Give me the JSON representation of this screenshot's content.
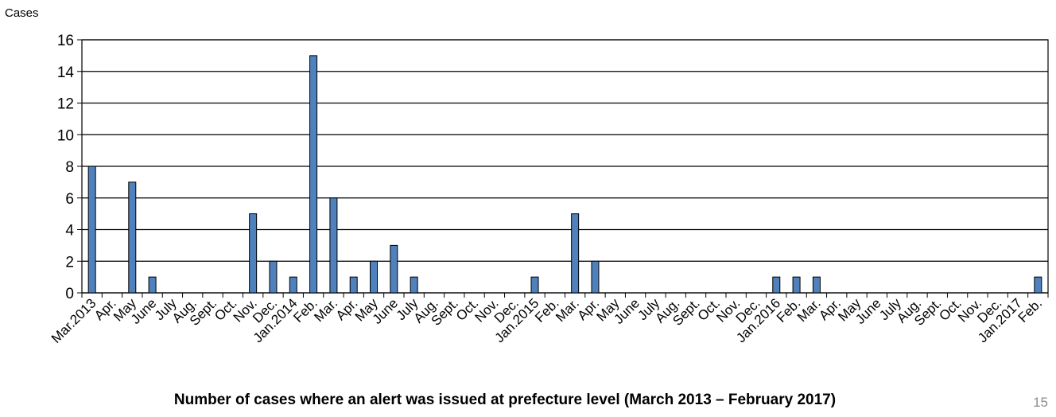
{
  "chart_data": {
    "type": "bar",
    "title": "Number of  cases where an alert was issued at prefecture level (March 2013 – February 2017)",
    "xlabel": "",
    "ylabel": "Cases",
    "ylim": [
      0,
      16
    ],
    "yticks": [
      0,
      2,
      4,
      6,
      8,
      10,
      12,
      14,
      16
    ],
    "grid": true,
    "legend": "none",
    "bar_color": "#4f81bd",
    "bar_stroke": "#000000",
    "categories": [
      "Mar.2013",
      "Apr.",
      "May",
      "June",
      "July",
      "Aug.",
      "Sept.",
      "Oct.",
      "Nov.",
      "Dec.",
      "Jan.2014",
      "Feb.",
      "Mar.",
      "Apr.",
      "May",
      "June",
      "July",
      "Aug.",
      "Sept.",
      "Oct.",
      "Nov.",
      "Dec.",
      "Jan.2015",
      "Feb.",
      "Mar.",
      "Apr.",
      "May",
      "June",
      "July",
      "Aug.",
      "Sept.",
      "Oct.",
      "Nov.",
      "Dec.",
      "Jan.2016",
      "Feb.",
      "Mar.",
      "Apr.",
      "May",
      "June",
      "July",
      "Aug.",
      "Sept.",
      "Oct.",
      "Nov.",
      "Dec.",
      "Jan.2017",
      "Feb."
    ],
    "values": [
      8,
      0,
      7,
      1,
      0,
      0,
      0,
      0,
      5,
      2,
      1,
      15,
      6,
      1,
      2,
      3,
      1,
      0,
      0,
      0,
      0,
      0,
      1,
      0,
      5,
      2,
      0,
      0,
      0,
      0,
      0,
      0,
      0,
      0,
      1,
      1,
      1,
      0,
      0,
      0,
      0,
      0,
      0,
      0,
      0,
      0,
      0,
      1
    ]
  },
  "page_number": "15"
}
